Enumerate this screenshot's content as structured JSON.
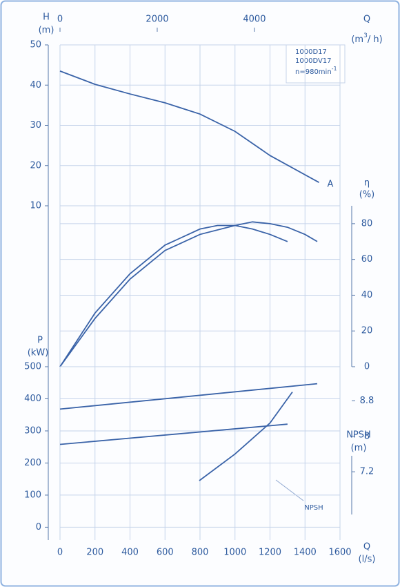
{
  "chart_data": [
    {
      "type": "line",
      "y_label": "H",
      "y_unit": "(m)",
      "ylim": [
        10,
        50
      ],
      "yticks": [
        10,
        20,
        30,
        40,
        50
      ],
      "xlim": [
        0,
        1600
      ],
      "x2_label": "Q",
      "x2_unit": {
        "prefix": "(m",
        "sup": "3",
        "suffix": "/ h)"
      },
      "x2lim": [
        0,
        5760
      ],
      "x2ticks": [
        0,
        2000,
        4000
      ],
      "models": [
        "1000D17",
        "1000DV17"
      ],
      "speed": {
        "text": "n=980min",
        "sup": "-1"
      },
      "series": [
        {
          "name": "A",
          "color": "#3a63a8",
          "x": [
            0,
            200,
            400,
            600,
            800,
            1000,
            1200,
            1480
          ],
          "values": [
            43.5,
            40.2,
            37.8,
            35.6,
            32.8,
            28.5,
            22.5,
            15.8
          ]
        }
      ]
    },
    {
      "type": "line",
      "y_label": "η",
      "y_unit": "(%)",
      "ylim": [
        0,
        90
      ],
      "yticks": [
        0,
        20,
        40,
        60,
        80
      ],
      "xlim": [
        0,
        1600
      ],
      "series": [
        {
          "color": "#3a63a8",
          "x": [
            0,
            200,
            400,
            600,
            800,
            900,
            1000,
            1100,
            1200,
            1300
          ],
          "values": [
            0,
            30,
            52,
            68,
            77,
            79,
            79,
            77,
            74,
            70
          ]
        },
        {
          "color": "#3a63a8",
          "x": [
            0,
            200,
            400,
            600,
            800,
            1000,
            1100,
            1200,
            1300,
            1400,
            1470
          ],
          "values": [
            0,
            27,
            49,
            65,
            74,
            79,
            81,
            80,
            78,
            74,
            70
          ]
        }
      ]
    },
    {
      "type": "line",
      "y_label": "P",
      "y_unit": "(kW)",
      "ylim": [
        -40,
        500
      ],
      "yticks": [
        0,
        100,
        200,
        300,
        400,
        500
      ],
      "y2_label": "NPSH",
      "y2_unit": "(m)",
      "y2lim": [
        5.66,
        9.57
      ],
      "y2ticks": [
        7.2,
        8,
        8.8
      ],
      "x_label": "Q",
      "x_unit": "(l/s)",
      "xlim": [
        0,
        1600
      ],
      "xticks": [
        0,
        200,
        400,
        600,
        800,
        1000,
        1200,
        1400,
        1600
      ],
      "series": [
        {
          "color": "#3a63a8",
          "x": [
            0,
            1470
          ],
          "values": [
            368,
            447
          ]
        },
        {
          "color": "#3a63a8",
          "x": [
            0,
            1300
          ],
          "values": [
            258,
            321
          ]
        },
        {
          "name": "NPSH",
          "color": "#3a63a8",
          "axis": "y2",
          "x": [
            796,
            1000,
            1200,
            1328
          ],
          "values": [
            7.0,
            7.6,
            8.3,
            9.0
          ]
        }
      ]
    }
  ]
}
